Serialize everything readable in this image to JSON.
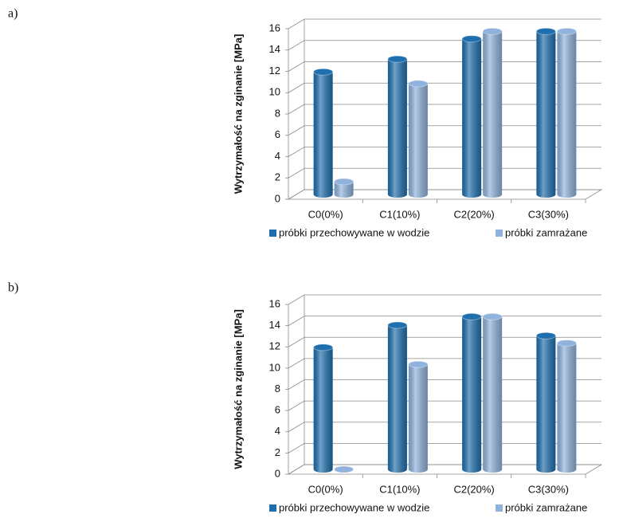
{
  "chart_data": [
    {
      "type": "bar",
      "panel_label": "a)",
      "y_label": "Wytrzymałość na zginanie [MPa]",
      "categories": [
        "C0(0%)",
        "C1(10%)",
        "C2(20%)",
        "C3(30%)"
      ],
      "series": [
        {
          "name": "próbki przechowywane w wodzie",
          "color": "#1f6fae",
          "values": [
            11.5,
            12.7,
            14.6,
            15.3
          ]
        },
        {
          "name": "próbki zamrażane",
          "color": "#8fb3dc",
          "values": [
            1.2,
            10.4,
            15.3,
            15.3
          ]
        }
      ],
      "ylim": [
        0,
        16
      ],
      "yticks": [
        0,
        2,
        4,
        6,
        8,
        10,
        12,
        14,
        16
      ],
      "grid": true
    },
    {
      "type": "bar",
      "panel_label": "b)",
      "y_label": "Wytrzymałość na zginanie [MPa]",
      "categories": [
        "C0(0%)",
        "C1(10%)",
        "C2(20%)",
        "C3(30%)"
      ],
      "series": [
        {
          "name": "próbki przechowywane w wodzie",
          "color": "#1f6fae",
          "values": [
            11.5,
            13.6,
            14.4,
            12.6
          ]
        },
        {
          "name": "próbki zamrażane",
          "color": "#8fb3dc",
          "values": [
            0,
            9.9,
            14.4,
            11.9
          ]
        }
      ],
      "ylim": [
        0,
        16
      ],
      "yticks": [
        0,
        2,
        4,
        6,
        8,
        10,
        12,
        14,
        16
      ],
      "grid": true
    }
  ]
}
